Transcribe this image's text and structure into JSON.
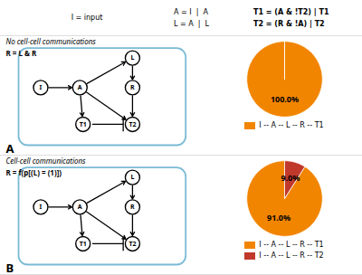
{
  "chart_data": [
    {
      "type": "diagram",
      "annotations": [
        "I = input",
        "A = I  |  A",
        "L = A  |  L",
        "T1 = (A & !T2) | T1",
        "T2 = (R & !A) | T2"
      ],
      "categories": [
        "I",
        "A",
        "L",
        "R",
        "T1",
        "T2"
      ],
      "color": "#7ABBD6"
    },
    {
      "type": "pie",
      "title": "No cell-cell communications",
      "subtitle": "R = L & R",
      "annotations": [
        "A"
      ],
      "categories": [
        "I -- A -- L -- R -- T1"
      ],
      "values": [
        100.0
      ],
      "value_labels": [
        "100.0%"
      ],
      "colors": [
        "#F28500"
      ],
      "data_labels": true,
      "legend": "bottom"
    },
    {
      "type": "pie",
      "title": "Cell-cell communications",
      "subtitle": "R = f(p[(L) = (1)])",
      "annotations": [
        "B"
      ],
      "categories": [
        "I -- A -- L -- R -- T1",
        "I -- A -- L -- R -- T2"
      ],
      "values": [
        91.0,
        9.0
      ],
      "value_labels": [
        "91.0%",
        "9.0%"
      ],
      "colors": [
        "#F28500",
        "#C0392B"
      ],
      "data_labels": true,
      "legend": "bottom"
    }
  ]
}
